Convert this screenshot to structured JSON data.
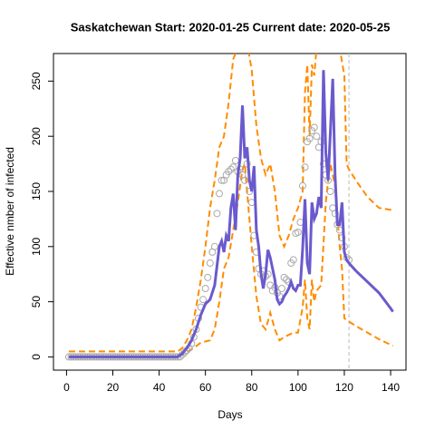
{
  "chart_data": {
    "type": "line",
    "title": "Saskatchewan Start:  2020-01-25   Current date:  2020-05-25",
    "x_label": "Days",
    "y_label": "Effective nmber of infected",
    "xlim": [
      -5.64,
      146.64
    ],
    "ylim": [
      -12,
      275
    ],
    "xticks": [
      0,
      20,
      40,
      60,
      80,
      100,
      120,
      140
    ],
    "yticks": [
      0,
      50,
      100,
      150,
      200,
      250
    ],
    "vline": 122,
    "vline_color": "#bbbbbb",
    "observed": {
      "color": "#aaaaaa",
      "x": [
        1,
        2,
        3,
        4,
        5,
        6,
        7,
        8,
        9,
        10,
        11,
        12,
        13,
        14,
        15,
        16,
        17,
        18,
        19,
        20,
        21,
        22,
        23,
        24,
        25,
        26,
        27,
        28,
        29,
        30,
        31,
        32,
        33,
        34,
        35,
        36,
        37,
        38,
        39,
        40,
        41,
        42,
        43,
        44,
        45,
        46,
        47,
        48,
        49,
        50,
        51,
        52,
        53,
        54,
        55,
        56,
        57,
        58,
        59,
        60,
        61,
        62,
        63,
        64,
        65,
        66,
        67,
        68,
        69,
        70,
        71,
        72,
        73,
        74,
        75,
        76,
        77,
        78,
        79,
        80,
        81,
        82,
        83,
        84,
        85,
        86,
        87,
        88,
        89,
        90,
        91,
        92,
        93,
        94,
        95,
        96,
        97,
        98,
        99,
        100,
        101,
        102,
        103,
        104,
        105,
        106,
        107,
        108,
        109,
        110,
        111,
        112,
        113,
        114,
        115,
        116,
        117,
        118,
        119,
        120,
        121,
        122
      ],
      "values": [
        0,
        0,
        0,
        0,
        0,
        0,
        0,
        0,
        0,
        0,
        0,
        0,
        0,
        0,
        0,
        0,
        0,
        0,
        0,
        0,
        0,
        0,
        0,
        0,
        0,
        0,
        0,
        0,
        0,
        0,
        0,
        0,
        0,
        0,
        0,
        0,
        0,
        0,
        0,
        0,
        0,
        0,
        0,
        0,
        0,
        0,
        0,
        0,
        0,
        2,
        4,
        6,
        8,
        12,
        18,
        25,
        35,
        45,
        52,
        62,
        72,
        85,
        95,
        100,
        130,
        148,
        160,
        160,
        165,
        168,
        170,
        172,
        178,
        168,
        170,
        165,
        160,
        175,
        150,
        140,
        110,
        95,
        80,
        75,
        78,
        73,
        75,
        65,
        60,
        63,
        58,
        55,
        62,
        72,
        70,
        68,
        85,
        88,
        112,
        113,
        122,
        155,
        172,
        195,
        198,
        205,
        208,
        200,
        190,
        195,
        175,
        165,
        160,
        150,
        135,
        130,
        120,
        115,
        108,
        100,
        90,
        88
      ]
    },
    "fit": {
      "color": "#6a5acd",
      "x": [
        1,
        48,
        50,
        52,
        54,
        56,
        58,
        60,
        62,
        64,
        66,
        67,
        68,
        69,
        70,
        71,
        72,
        73,
        74,
        75,
        76,
        77,
        78,
        79,
        80,
        81,
        82,
        83,
        84,
        85,
        86,
        87,
        88,
        89,
        90,
        91,
        92,
        93,
        94,
        95,
        96,
        97,
        98,
        99,
        100,
        101,
        102,
        103,
        104,
        105,
        106,
        107,
        108,
        109,
        110,
        111,
        112,
        113,
        114,
        115,
        116,
        117,
        118,
        119,
        120,
        121,
        122,
        125,
        130,
        135,
        140,
        141
      ],
      "values": [
        0,
        0,
        3,
        8,
        15,
        25,
        38,
        48,
        52,
        65,
        100,
        105,
        95,
        110,
        105,
        135,
        148,
        115,
        165,
        180,
        228,
        180,
        190,
        160,
        150,
        173,
        115,
        100,
        75,
        62,
        75,
        97,
        90,
        80,
        70,
        52,
        48,
        50,
        55,
        58,
        62,
        68,
        62,
        60,
        65,
        65,
        98,
        143,
        85,
        75,
        140,
        125,
        130,
        145,
        135,
        260,
        185,
        160,
        205,
        252,
        165,
        120,
        120,
        140,
        95,
        88,
        85,
        78,
        68,
        58,
        44,
        41
      ]
    },
    "upper": {
      "color": "#ff8c00",
      "x": [
        1,
        48,
        50,
        52,
        54,
        56,
        58,
        60,
        62,
        64,
        66,
        68,
        70,
        72,
        73,
        76,
        78,
        80,
        82,
        84,
        86,
        88,
        90,
        92,
        94,
        96,
        98,
        100,
        102,
        103,
        104,
        105,
        106,
        107,
        108,
        110,
        112,
        118,
        120,
        121,
        122,
        125,
        130,
        135,
        141
      ],
      "values": [
        5,
        5,
        8,
        15,
        25,
        45,
        70,
        100,
        135,
        160,
        190,
        200,
        230,
        270,
        275,
        300,
        285,
        260,
        210,
        180,
        165,
        175,
        150,
        110,
        100,
        110,
        125,
        135,
        150,
        240,
        265,
        200,
        265,
        255,
        280,
        290,
        295,
        280,
        255,
        175,
        170,
        160,
        145,
        135,
        133
      ]
    },
    "lower": {
      "color": "#ff8c00",
      "x": [
        1,
        48,
        50,
        55,
        58,
        62,
        64,
        66,
        68,
        70,
        72,
        74,
        76,
        77,
        78,
        79,
        80,
        82,
        84,
        86,
        88,
        90,
        92,
        94,
        96,
        98,
        100,
        102,
        103,
        104,
        105,
        106,
        107,
        108,
        110,
        112,
        113,
        114,
        116,
        118,
        119,
        120,
        122,
        125,
        130,
        135,
        141
      ],
      "values": [
        0,
        0,
        2,
        8,
        13,
        15,
        25,
        50,
        80,
        90,
        115,
        140,
        170,
        175,
        150,
        125,
        100,
        55,
        30,
        25,
        40,
        25,
        15,
        18,
        20,
        22,
        22,
        45,
        70,
        35,
        25,
        70,
        50,
        60,
        65,
        140,
        160,
        175,
        155,
        100,
        80,
        35,
        32,
        28,
        22,
        16,
        10
      ]
    }
  }
}
